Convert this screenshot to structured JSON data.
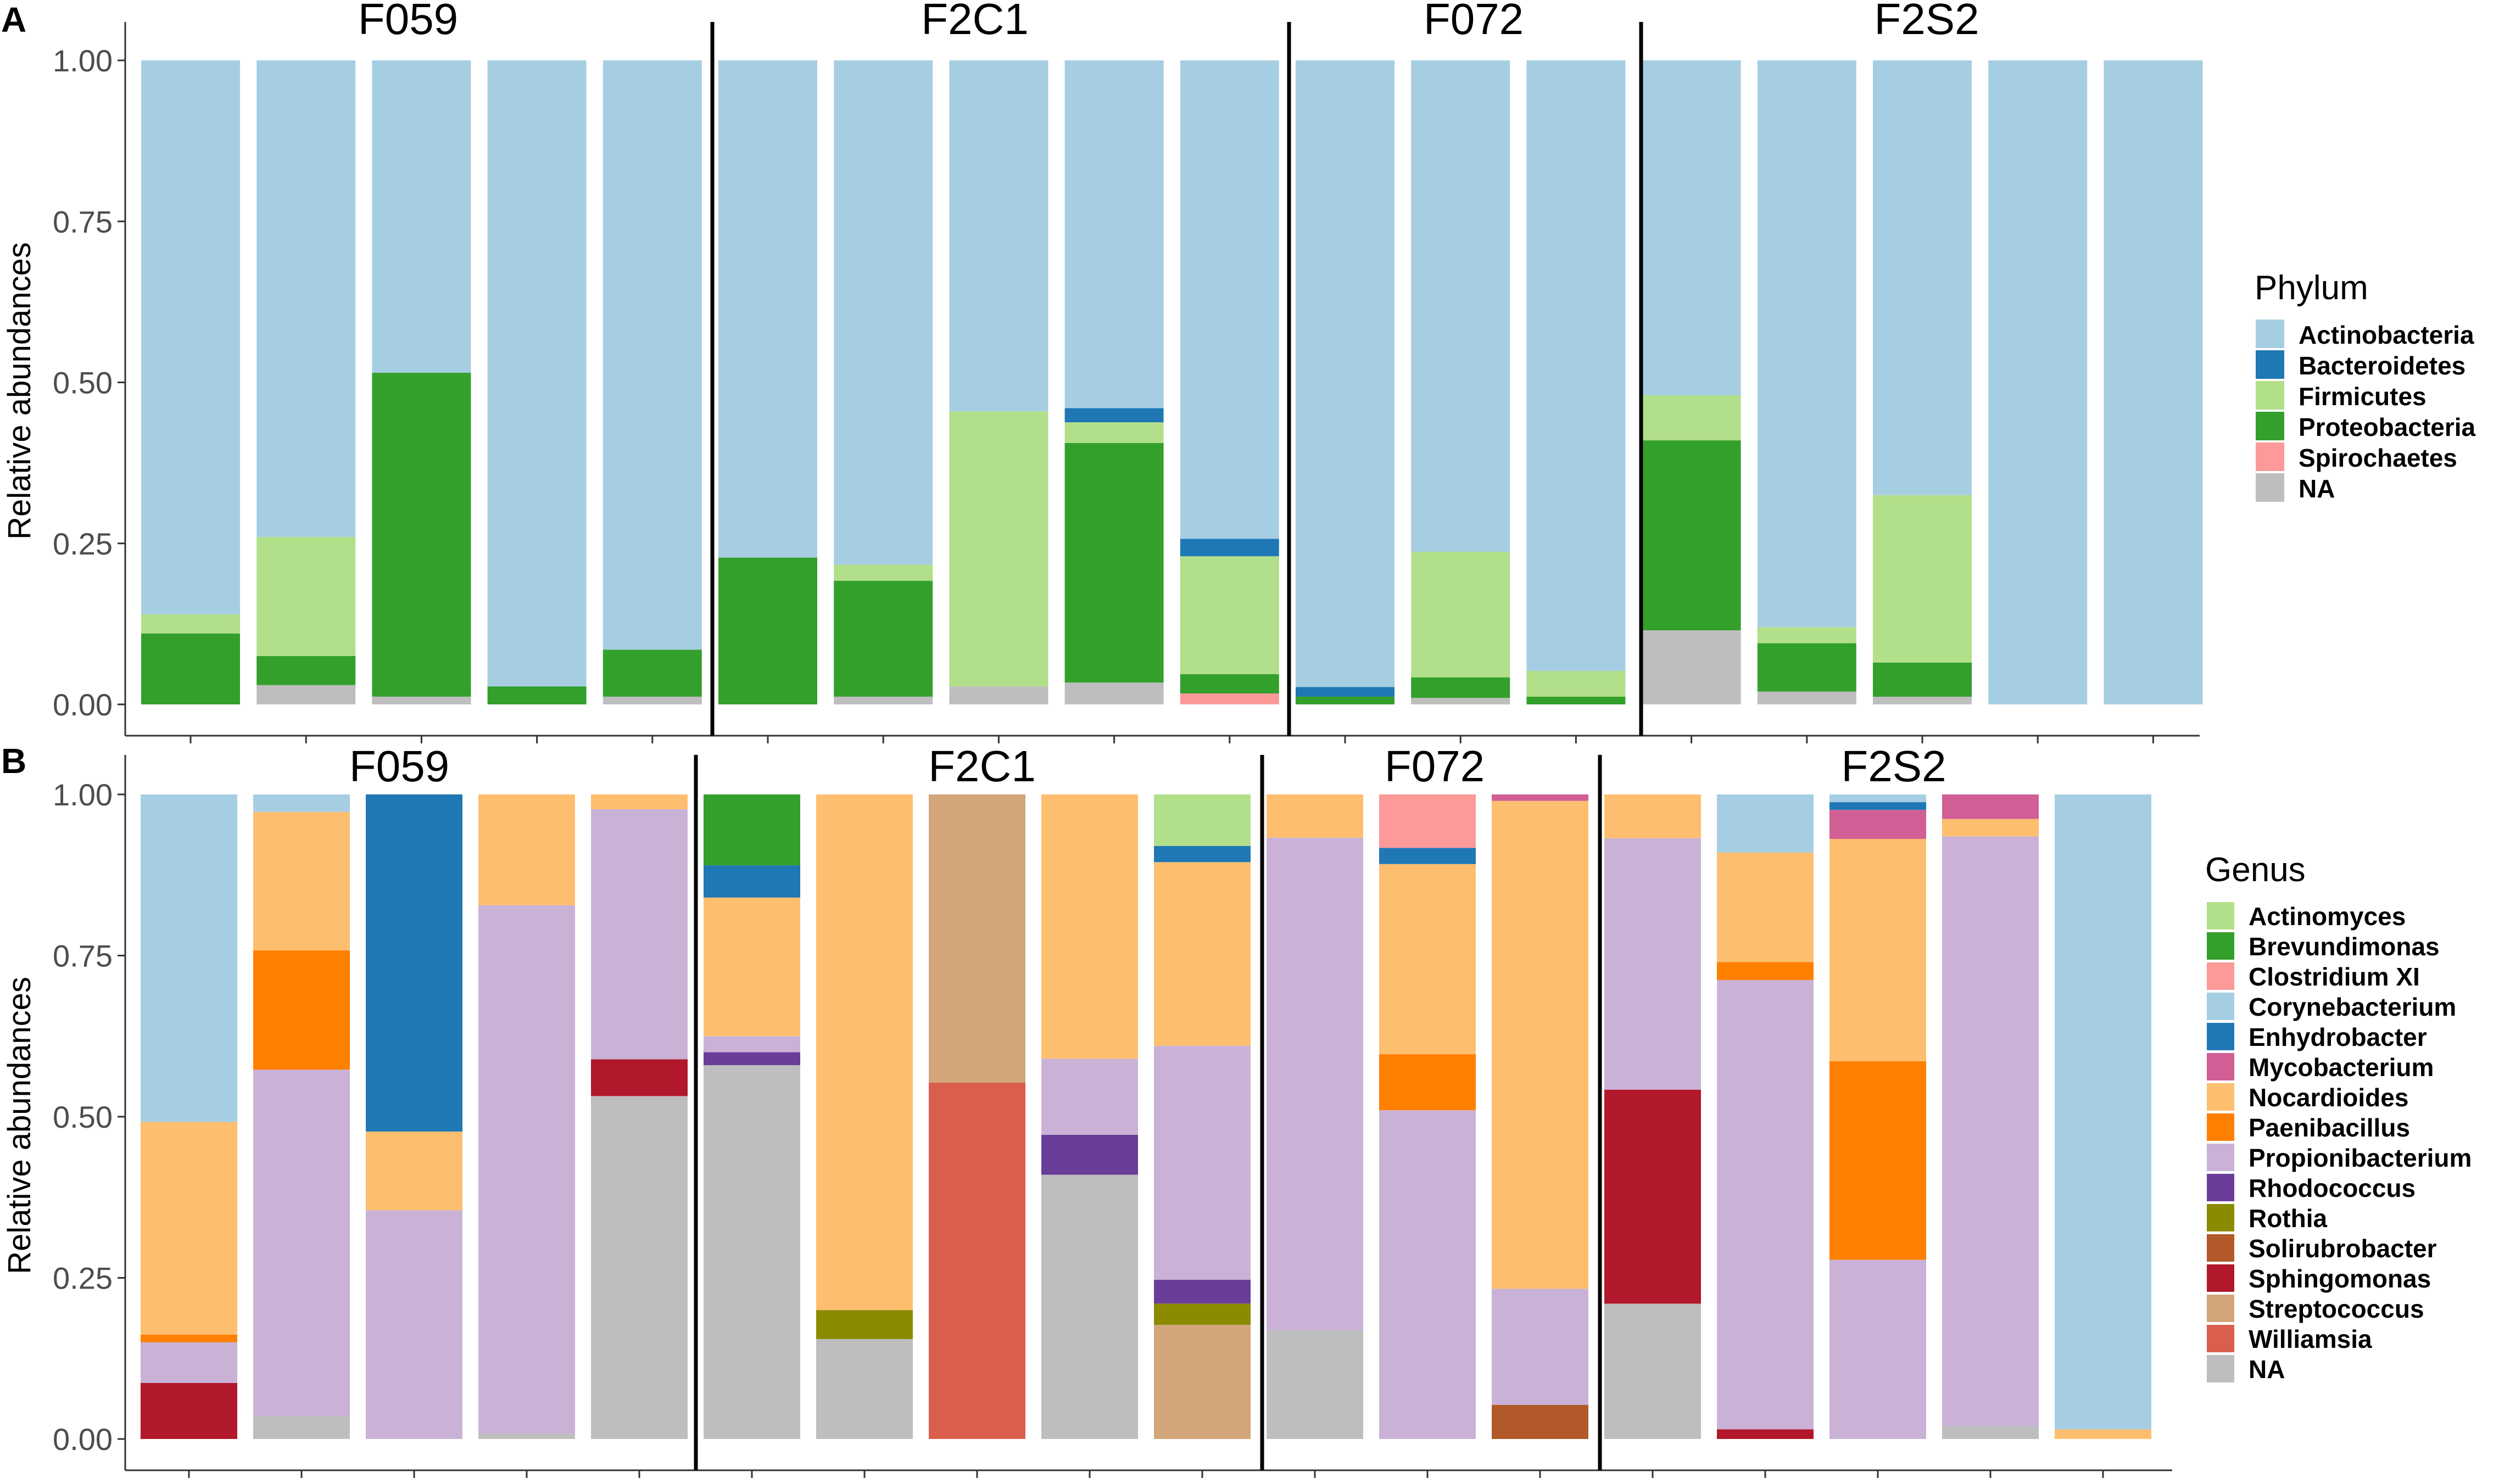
{
  "colors": {
    "Actinobacteria": "#a6cee3",
    "Bacteroidetes": "#1f78b4",
    "Firmicutes": "#b2df8a",
    "Proteobacteria": "#33a02c",
    "Spirochaetes": "#fb9a99",
    "Actinomyces": "#b2df8a",
    "Brevundimonas": "#33a02c",
    "Clostridium XI": "#fb9a99",
    "Corynebacterium": "#a6cee3",
    "Enhydrobacter": "#1f78b4",
    "Mycobacterium": "#d15f96",
    "Nocardioides": "#fdbf6f",
    "Paenibacillus": "#ff7f00",
    "Propionibacterium": "#cab2d6",
    "Rhodococcus": "#6a3d9a",
    "Rothia": "#8b8b00",
    "Solirubrobacter": "#b15928",
    "Sphingomonas": "#b2182b",
    "Streptococcus": "#d2a679",
    "Williamsia": "#d95f4c",
    "NA": "#bebebe"
  },
  "chart_data": [
    {
      "type": "bar",
      "stacked": true,
      "panel": "A",
      "ylabel": "Relative abundances",
      "ylim": [
        0,
        1
      ],
      "yticks": [
        "0.00",
        "0.25",
        "0.50",
        "0.75",
        "1.00"
      ],
      "legend_title": "Phylum",
      "legend": [
        "Actinobacteria",
        "Bacteroidetes",
        "Firmicutes",
        "Proteobacteria",
        "Spirochaetes",
        "NA"
      ],
      "groups": [
        {
          "label": "F059",
          "bars": [
            {
              "NA": 0,
              "Proteobacteria": 0.11,
              "Firmicutes": 0.03,
              "Actinobacteria": 0.86
            },
            {
              "NA": 0.03,
              "Proteobacteria": 0.045,
              "Firmicutes": 0.185,
              "Actinobacteria": 0.74
            },
            {
              "NA": 0.012,
              "Proteobacteria": 0.503,
              "Actinobacteria": 0.485
            },
            {
              "Proteobacteria": 0.028,
              "Actinobacteria": 0.972
            },
            {
              "NA": 0.012,
              "Proteobacteria": 0.073,
              "Actinobacteria": 0.915
            }
          ]
        },
        {
          "label": "F2C1",
          "bars": [
            {
              "Proteobacteria": 0.228,
              "Actinobacteria": 0.772
            },
            {
              "NA": 0.012,
              "Proteobacteria": 0.18,
              "Firmicutes": 0.025,
              "Actinobacteria": 0.783
            },
            {
              "NA": 0.028,
              "Firmicutes": 0.427,
              "Actinobacteria": 0.545
            },
            {
              "NA": 0.034,
              "Proteobacteria": 0.372,
              "Firmicutes": 0.032,
              "Bacteroidetes": 0.022,
              "Actinobacteria": 0.54
            },
            {
              "Spirochaetes": 0.017,
              "Proteobacteria": 0.03,
              "Firmicutes": 0.183,
              "Bacteroidetes": 0.027,
              "Actinobacteria": 0.743
            }
          ]
        },
        {
          "label": "F072",
          "bars": [
            {
              "Proteobacteria": 0.012,
              "Bacteroidetes": 0.015,
              "Actinobacteria": 0.973
            },
            {
              "NA": 0.01,
              "Proteobacteria": 0.032,
              "Firmicutes": 0.195,
              "Actinobacteria": 0.763
            },
            {
              "Proteobacteria": 0.012,
              "Firmicutes": 0.04,
              "Actinobacteria": 0.948
            }
          ]
        },
        {
          "label": "F2S2",
          "bars": [
            {
              "NA": 0.115,
              "Proteobacteria": 0.295,
              "Firmicutes": 0.07,
              "Actinobacteria": 0.52
            },
            {
              "NA": 0.02,
              "Proteobacteria": 0.075,
              "Firmicutes": 0.025,
              "Actinobacteria": 0.88
            },
            {
              "NA": 0.012,
              "Proteobacteria": 0.053,
              "Firmicutes": 0.26,
              "Actinobacteria": 0.675
            },
            {
              "Actinobacteria": 1.0
            },
            {
              "Actinobacteria": 1.0
            }
          ]
        }
      ]
    },
    {
      "type": "bar",
      "stacked": true,
      "panel": "B",
      "ylabel": "Relative abundances",
      "ylim": [
        0,
        1
      ],
      "yticks": [
        "0.00",
        "0.25",
        "0.50",
        "0.75",
        "1.00"
      ],
      "legend_title": "Genus",
      "legend": [
        "Actinomyces",
        "Brevundimonas",
        "Clostridium XI",
        "Corynebacterium",
        "Enhydrobacter",
        "Mycobacterium",
        "Nocardioides",
        "Paenibacillus",
        "Propionibacterium",
        "Rhodococcus",
        "Rothia",
        "Solirubrobacter",
        "Sphingomonas",
        "Streptococcus",
        "Williamsia",
        "NA"
      ],
      "groups": [
        {
          "label": "F059",
          "bars": [
            {
              "Sphingomonas": 0.087,
              "Propionibacterium": 0.063,
              "Paenibacillus": 0.012,
              "Nocardioides": 0.33,
              "Corynebacterium": 0.508
            },
            {
              "NA": 0.035,
              "Propionibacterium": 0.538,
              "Paenibacillus": 0.185,
              "Nocardioides": 0.215,
              "Corynebacterium": 0.027
            },
            {
              "Propionibacterium": 0.355,
              "Nocardioides": 0.122,
              "Enhydrobacter": 0.523
            },
            {
              "NA": 0.008,
              "Propionibacterium": 0.82,
              "Nocardioides": 0.172
            },
            {
              "NA": 0.532,
              "Sphingomonas": 0.057,
              "Propionibacterium": 0.388,
              "Nocardioides": 0.023
            }
          ]
        },
        {
          "label": "F2C1",
          "bars": [
            {
              "NA": 0.58,
              "Rhodococcus": 0.02,
              "Propionibacterium": 0.025,
              "Nocardioides": 0.215,
              "Enhydrobacter": 0.05,
              "Brevundimonas": 0.11
            },
            {
              "NA": 0.155,
              "Rothia": 0.045,
              "Nocardioides": 0.8
            },
            {
              "Williamsia": 0.553,
              "Streptococcus": 0.447
            },
            {
              "NA": 0.41,
              "Rhodococcus": 0.062,
              "Propionibacterium": 0.118,
              "Nocardioides": 0.41
            },
            {
              "Streptococcus": 0.177,
              "Rothia": 0.033,
              "Rhodococcus": 0.037,
              "Propionibacterium": 0.363,
              "Nocardioides": 0.285,
              "Enhydrobacter": 0.025,
              "Actinomyces": 0.08
            }
          ]
        },
        {
          "label": "F072",
          "bars": [
            {
              "NA": 0.168,
              "Propionibacterium": 0.765,
              "Nocardioides": 0.067
            },
            {
              "Propionibacterium": 0.51,
              "Paenibacillus": 0.087,
              "Nocardioides": 0.295,
              "Enhydrobacter": 0.025,
              "Clostridium XI": 0.083
            },
            {
              "Solirubrobacter": 0.053,
              "Propionibacterium": 0.18,
              "Nocardioides": 0.757,
              "Mycobacterium": 0.01
            }
          ]
        },
        {
          "label": "F2S2",
          "bars": [
            {
              "NA": 0.21,
              "Sphingomonas": 0.332,
              "Propionibacterium": 0.39,
              "Nocardioides": 0.068
            },
            {
              "Sphingomonas": 0.015,
              "Propionibacterium": 0.697,
              "Paenibacillus": 0.028,
              "Nocardioides": 0.17,
              "Corynebacterium": 0.09
            },
            {
              "Propionibacterium": 0.278,
              "Paenibacillus": 0.308,
              "Nocardioides": 0.345,
              "Mycobacterium": 0.045,
              "Enhydrobacter": 0.012,
              "Corynebacterium": 0.012
            },
            {
              "NA": 0.02,
              "Propionibacterium": 0.915,
              "Nocardioides": 0.027,
              "Mycobacterium": 0.038
            },
            {
              "Nocardioides": 0.015,
              "Corynebacterium": 0.985
            }
          ]
        }
      ]
    }
  ]
}
